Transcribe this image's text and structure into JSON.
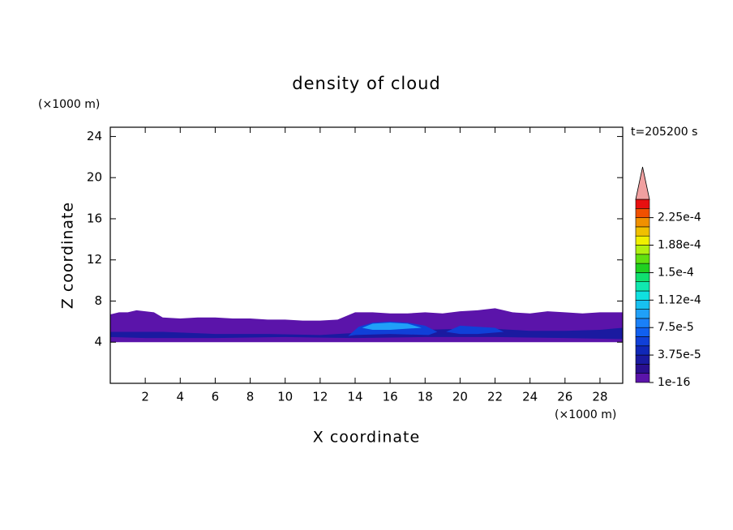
{
  "chart_data": {
    "type": "contour",
    "title": "density of cloud",
    "x_label": "X coordinate",
    "y_label": "Z coordinate",
    "x_unit": "(×1000 m)",
    "y_unit": "(×1000 m)",
    "time_label": "t=205200 s",
    "xlim": [
      0,
      29.3
    ],
    "ylim": [
      0,
      24.9
    ],
    "xticks": [
      2,
      4,
      6,
      8,
      10,
      12,
      14,
      16,
      18,
      20,
      22,
      24,
      26,
      28
    ],
    "yticks": [
      4,
      8,
      12,
      16,
      20,
      24
    ],
    "colorbar": {
      "levels": [
        1e-16,
        1.25e-05,
        2.5e-05,
        3.75e-05,
        5e-05,
        6.25e-05,
        7.5e-05,
        8.75e-05,
        0.0001,
        0.0001125,
        0.000125,
        0.0001375,
        0.00015,
        0.0001625,
        0.000175,
        0.0001875,
        0.0002,
        0.0002125,
        0.000225,
        0.0002375,
        0.00025
      ],
      "colors": [
        "#5b14aa",
        "#2a0f8f",
        "#1a1aa0",
        "#1028b8",
        "#1040d8",
        "#1060f0",
        "#1a80f8",
        "#20a0f8",
        "#18c0f0",
        "#10e0e0",
        "#10e8b0",
        "#10e070",
        "#20d020",
        "#60e010",
        "#b0f010",
        "#f0f000",
        "#f0c000",
        "#f09000",
        "#f05000",
        "#e81010"
      ],
      "extend_color": "#f0a0a0",
      "ticks": [
        1e-16,
        {
          "value": 3.75e-05,
          "label": "3.75e-5"
        },
        {
          "value": 7.5e-05,
          "label": "7.5e-5"
        },
        {
          "value": 0.0001125,
          "label": "1.12e-4"
        },
        {
          "value": 0.00015,
          "label": "1.5e-4"
        },
        {
          "value": 0.0001875,
          "label": "1.88e-4"
        },
        {
          "value": 0.000225,
          "label": "2.25e-4"
        }
      ]
    },
    "regions": [
      {
        "level": 0,
        "x": [
          0,
          0.5,
          1,
          1.5,
          2,
          2.5,
          3,
          4,
          5,
          6,
          7,
          8,
          9,
          10,
          11,
          12,
          13,
          14,
          15,
          16,
          17,
          18,
          19,
          20,
          21,
          22,
          23,
          24,
          25,
          26,
          27,
          28,
          29,
          29.3,
          29.3,
          0
        ],
        "z": [
          6.7,
          6.9,
          6.9,
          7.1,
          7.0,
          6.9,
          6.4,
          6.3,
          6.4,
          6.4,
          6.3,
          6.3,
          6.2,
          6.2,
          6.1,
          6.1,
          6.2,
          6.9,
          6.9,
          6.8,
          6.8,
          6.9,
          6.8,
          7.0,
          7.1,
          7.3,
          6.9,
          6.8,
          7.0,
          6.9,
          6.8,
          6.9,
          6.9,
          6.9,
          4.0,
          4.0
        ]
      },
      {
        "level": 2,
        "x": [
          0,
          3,
          6,
          9,
          12,
          14,
          16,
          18,
          20,
          22,
          24,
          26,
          28,
          29.3,
          29.3,
          26,
          22,
          18,
          14,
          10,
          6,
          2,
          0
        ],
        "z": [
          5.0,
          5.0,
          4.8,
          4.8,
          4.7,
          4.9,
          5.2,
          5.2,
          5.3,
          5.3,
          5.1,
          5.1,
          5.2,
          5.4,
          4.3,
          4.4,
          4.5,
          4.5,
          4.4,
          4.5,
          4.4,
          4.4,
          4.5
        ]
      },
      {
        "level": 4,
        "x": [
          13.6,
          14.2,
          15,
          16,
          17,
          18,
          18.7,
          18.2,
          16,
          14
        ],
        "z": [
          4.6,
          5.5,
          5.9,
          6.0,
          5.9,
          5.6,
          5.0,
          4.7,
          4.8,
          4.7
        ]
      },
      {
        "level": 4,
        "x": [
          19.2,
          20,
          21,
          22,
          22.5,
          21,
          20
        ],
        "z": [
          5.0,
          5.6,
          5.5,
          5.4,
          5.0,
          4.8,
          4.8
        ]
      },
      {
        "level": 7,
        "x": [
          14.4,
          15,
          16,
          17,
          17.8,
          16,
          15
        ],
        "z": [
          5.4,
          5.8,
          5.9,
          5.8,
          5.4,
          5.2,
          5.2
        ]
      }
    ]
  }
}
